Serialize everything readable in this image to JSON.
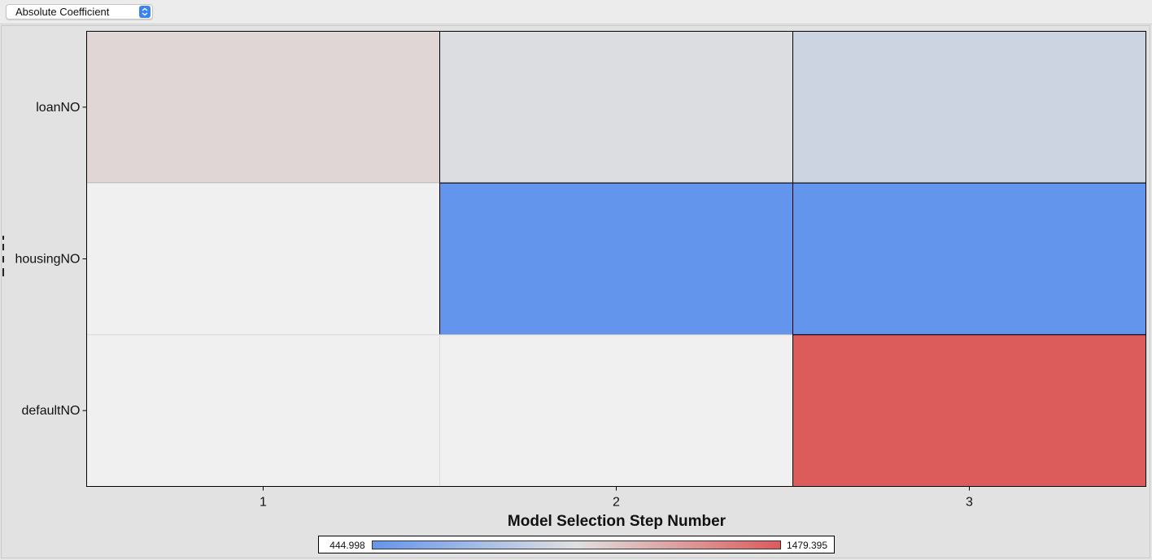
{
  "toolbar": {
    "metric_select": {
      "selected": "Absolute Coefficient",
      "icon": "up-down-chevron-icon"
    }
  },
  "chart_data": {
    "type": "heatmap",
    "title": "",
    "xlabel": "Model Selection Step Number",
    "ylabel": "",
    "x_categories": [
      "1",
      "2",
      "3"
    ],
    "y_categories": [
      "loanNO",
      "housingNO",
      "defaultNO"
    ],
    "cells": [
      {
        "x": "1",
        "y": "loanNO",
        "value": 1000
      },
      {
        "x": "2",
        "y": "loanNO",
        "value": 940
      },
      {
        "x": "3",
        "y": "loanNO",
        "value": 880
      },
      {
        "x": "1",
        "y": "housingNO",
        "value": null
      },
      {
        "x": "2",
        "y": "housingNO",
        "value": 445
      },
      {
        "x": "3",
        "y": "housingNO",
        "value": 445
      },
      {
        "x": "1",
        "y": "defaultNO",
        "value": null
      },
      {
        "x": "2",
        "y": "defaultNO",
        "value": null
      },
      {
        "x": "3",
        "y": "defaultNO",
        "value": 1479.395
      }
    ],
    "colorbar": {
      "min": 444.998,
      "max": 1479.395,
      "min_label": "444.998",
      "max_label": "1479.395",
      "colors": [
        "#6495ed",
        "#e0e0e0",
        "#dc5c5c"
      ]
    },
    "empty_color": "#f0f0f0",
    "grid": false,
    "legend_position": "bottom-center"
  }
}
